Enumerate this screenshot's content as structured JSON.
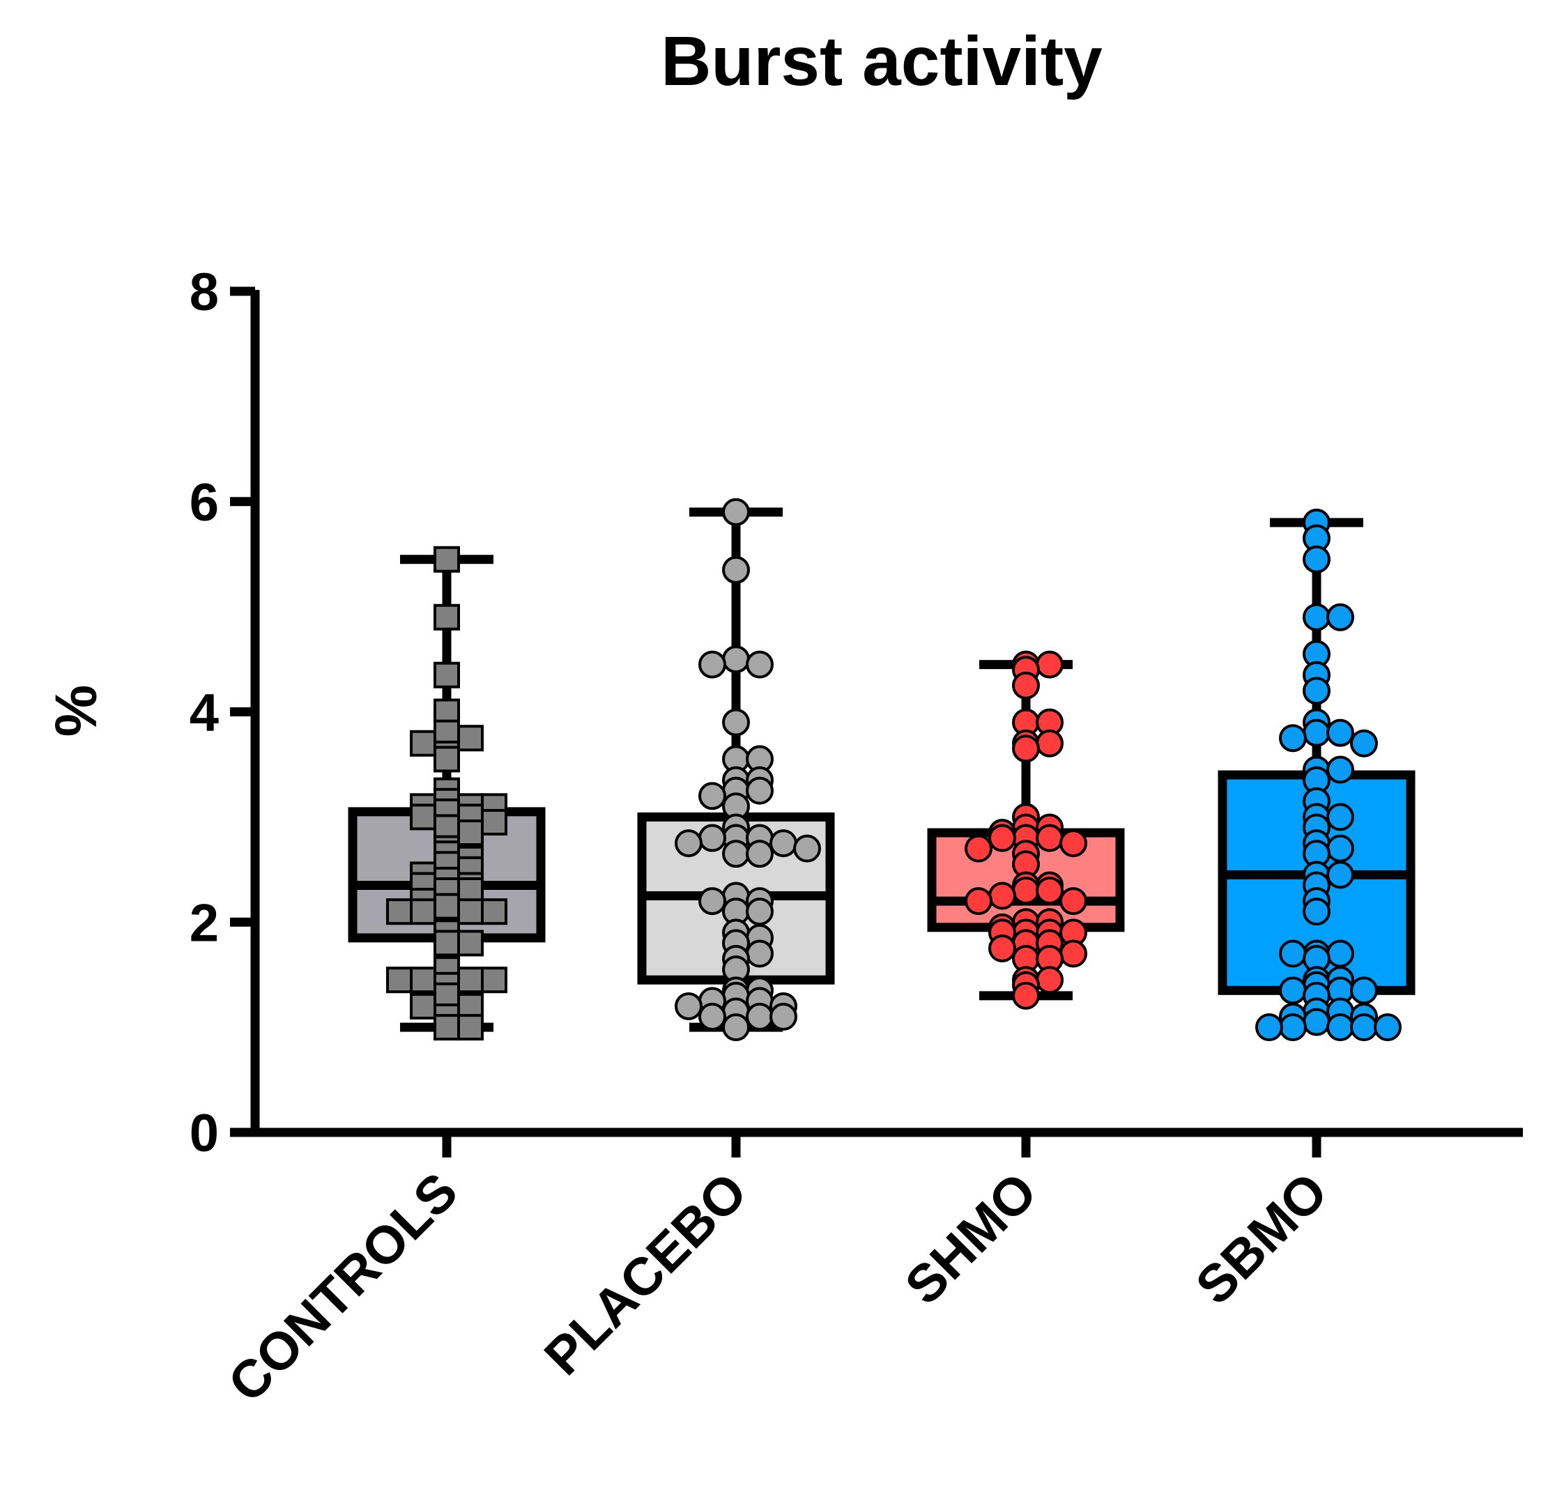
{
  "chart_data": {
    "type": "box",
    "title": "Burst activity",
    "xlabel": "",
    "ylabel": "%",
    "ylim": [
      0,
      8
    ],
    "yticks": [
      0,
      2,
      4,
      6,
      8
    ],
    "ytick_labels": [
      "0",
      "2",
      "4",
      "6",
      "8"
    ],
    "grid": false,
    "legend": "none",
    "categories": [
      "CONTROLS",
      "PLACEBO",
      "SHMO",
      "SBMO"
    ],
    "series": [
      {
        "category": "CONTROLS",
        "marker": "square",
        "box_color": "#a6a5ab",
        "point_color": "#808080",
        "min": 1.0,
        "q1": 1.85,
        "median": 2.35,
        "q3": 3.05,
        "max": 5.45,
        "points": [
          5.45,
          4.9,
          4.35,
          4.0,
          3.8,
          3.75,
          3.7,
          3.6,
          3.55,
          3.25,
          3.15,
          3.1,
          3.1,
          3.1,
          3.05,
          3.0,
          3.0,
          2.95,
          2.9,
          2.85,
          2.7,
          2.65,
          2.6,
          2.55,
          2.5,
          2.45,
          2.4,
          2.35,
          2.35,
          2.3,
          2.3,
          2.2,
          2.15,
          2.1,
          2.1,
          2.1,
          2.1,
          1.9,
          1.8,
          1.8,
          1.55,
          1.45,
          1.45,
          1.45,
          1.45,
          1.4,
          1.3,
          1.2,
          1.2,
          1.1,
          1.0,
          1.0
        ]
      },
      {
        "category": "PLACEBO",
        "marker": "circle",
        "box_color": "#d8d8d8",
        "point_color": "#a6a6a6",
        "min": 1.0,
        "q1": 1.45,
        "median": 2.25,
        "q3": 3.0,
        "max": 5.9,
        "points": [
          5.9,
          5.35,
          4.5,
          4.45,
          4.45,
          3.9,
          3.55,
          3.55,
          3.35,
          3.35,
          3.25,
          3.25,
          3.2,
          3.1,
          2.9,
          2.8,
          2.8,
          2.8,
          2.75,
          2.75,
          2.7,
          2.65,
          2.65,
          2.25,
          2.2,
          2.2,
          2.1,
          2.1,
          1.9,
          1.85,
          1.8,
          1.7,
          1.65,
          1.55,
          1.35,
          1.35,
          1.3,
          1.25,
          1.25,
          1.2,
          1.2,
          1.15,
          1.1,
          1.1,
          1.1,
          1.0
        ]
      },
      {
        "category": "SHMO",
        "marker": "circle",
        "box_color": "#ff8080",
        "point_color": "#ff3b3b",
        "min": 1.3,
        "q1": 1.95,
        "median": 2.2,
        "q3": 2.85,
        "max": 4.45,
        "points": [
          4.45,
          4.45,
          4.4,
          4.25,
          3.9,
          3.9,
          3.7,
          3.7,
          3.65,
          3.0,
          2.9,
          2.9,
          2.85,
          2.8,
          2.8,
          2.8,
          2.75,
          2.7,
          2.65,
          2.55,
          2.35,
          2.35,
          2.3,
          2.3,
          2.25,
          2.2,
          2.2,
          2.0,
          2.0,
          1.95,
          1.9,
          1.9,
          1.9,
          1.9,
          1.8,
          1.8,
          1.75,
          1.7,
          1.65,
          1.65,
          1.45,
          1.45,
          1.4,
          1.3
        ]
      },
      {
        "category": "SBMO",
        "marker": "circle",
        "box_color": "#00a0ff",
        "point_color": "#0a9bf5",
        "min": 1.0,
        "q1": 1.35,
        "median": 2.45,
        "q3": 3.4,
        "max": 5.8,
        "points": [
          5.8,
          5.65,
          5.45,
          4.9,
          4.9,
          4.55,
          4.35,
          4.2,
          3.9,
          3.8,
          3.8,
          3.75,
          3.7,
          3.45,
          3.45,
          3.35,
          3.15,
          3.0,
          3.0,
          2.9,
          2.75,
          2.7,
          2.65,
          2.45,
          2.45,
          2.35,
          2.2,
          2.1,
          1.7,
          1.7,
          1.7,
          1.65,
          1.45,
          1.45,
          1.4,
          1.35,
          1.35,
          1.35,
          1.3,
          1.15,
          1.15,
          1.1,
          1.1,
          1.05,
          1.0,
          1.0,
          1.0,
          1.0,
          1.0
        ]
      }
    ]
  }
}
